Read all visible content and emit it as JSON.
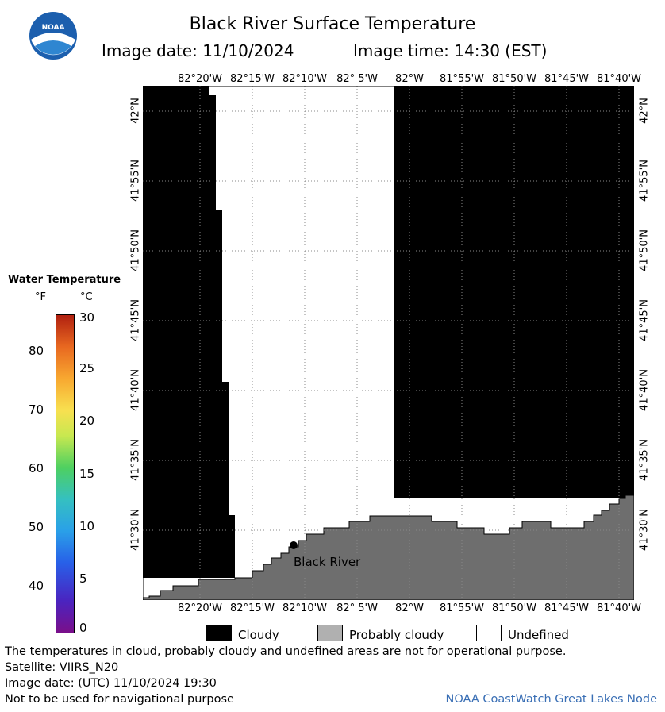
{
  "title": "Black River Surface Temperature",
  "image_date_label": "Image date: 11/10/2024",
  "image_time_label": "Image time: 14:30 (EST)",
  "logo": {
    "text": "NOAA",
    "icon": "noaa-logo"
  },
  "map": {
    "lon_labels": [
      "82°20'W",
      "82°15'W",
      "82°10'W",
      "82° 5'W",
      "82°W",
      "81°55'W",
      "81°50'W",
      "81°45'W",
      "81°40'W"
    ],
    "lat_labels": [
      "42°N",
      "41°55'N",
      "41°50'N",
      "41°45'N",
      "41°40'N",
      "41°35'N",
      "41°30'N"
    ],
    "station": {
      "name": "Black River"
    },
    "colors": {
      "cloudy": "#000000",
      "probably_cloudy": "#6e6e6e",
      "undefined": "#ffffff"
    }
  },
  "legend": {
    "title": "Water Temperature",
    "unit_f": "°F",
    "unit_c": "°C",
    "f_ticks": [
      "80",
      "70",
      "60",
      "50",
      "40"
    ],
    "c_ticks": [
      "30",
      "25",
      "20",
      "15",
      "10",
      "5",
      "0"
    ]
  },
  "key": {
    "cloudy": "Cloudy",
    "probably_cloudy": "Probably cloudy",
    "undefined": "Undefined"
  },
  "footer": {
    "disclaimer": "The temperatures in cloud, probably cloudy and undefined areas are not for operational purpose.",
    "satellite": "Satellite: VIIRS_N20",
    "utc_date": "Image date: (UTC) 11/10/2024  19:30",
    "nav_warning": "Not to be used for navigational purpose",
    "credit": "NOAA CoastWatch Great Lakes Node"
  }
}
